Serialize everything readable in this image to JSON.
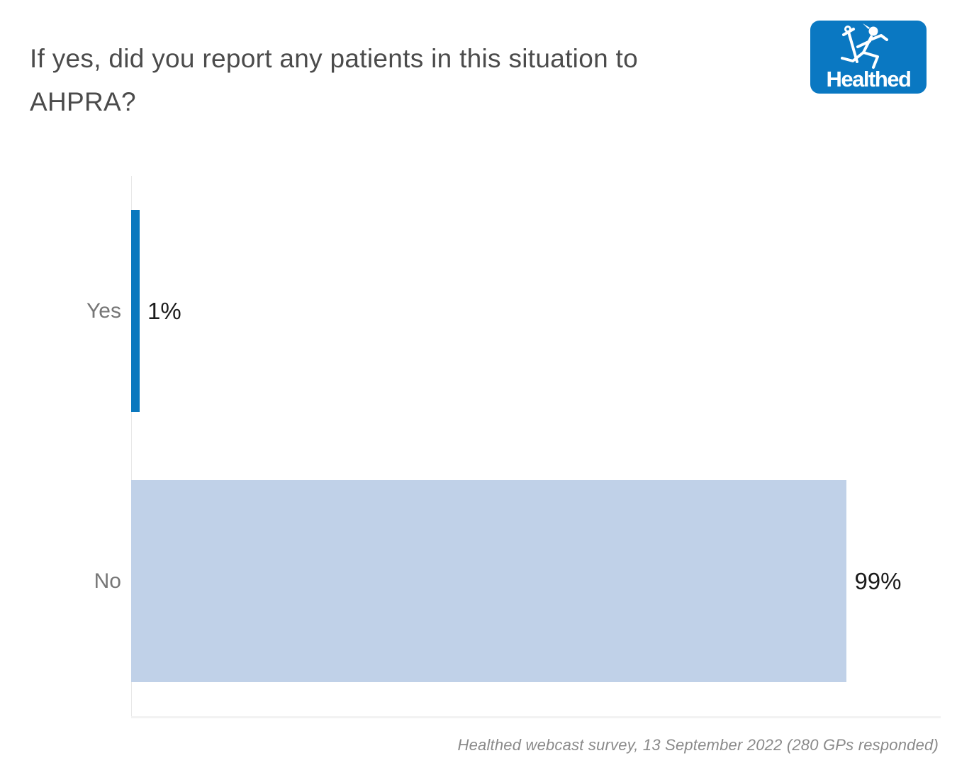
{
  "header": {
    "title": "If yes, did you report any patients in this situation to AHPRA?",
    "logo_text": "Healthed"
  },
  "chart_data": {
    "type": "bar",
    "orientation": "horizontal",
    "title": "If yes, did you report any patients in this situation to AHPRA?",
    "categories": [
      "Yes",
      "No"
    ],
    "values": [
      1,
      99
    ],
    "value_labels": [
      "1%",
      "99%"
    ],
    "unit": "%",
    "xlim": [
      0,
      112
    ],
    "bar_colors": [
      "#0b78be",
      "#c0d1e8"
    ],
    "grid": false,
    "legend_position": "none",
    "value_label_position": "outside-end"
  },
  "footer": {
    "caption": "Healthed webcast survey, 13 September 2022 (280 GPs responded)"
  },
  "colors": {
    "logo_blue": "#0a78c2",
    "title_text": "#4b4b4b",
    "category_label": "#767676",
    "value_label": "#1b1b1b",
    "caption_text": "#8a8a8a",
    "axis_line": "#e8e8e8",
    "axis_bottom_line": "#f2f2f2"
  }
}
